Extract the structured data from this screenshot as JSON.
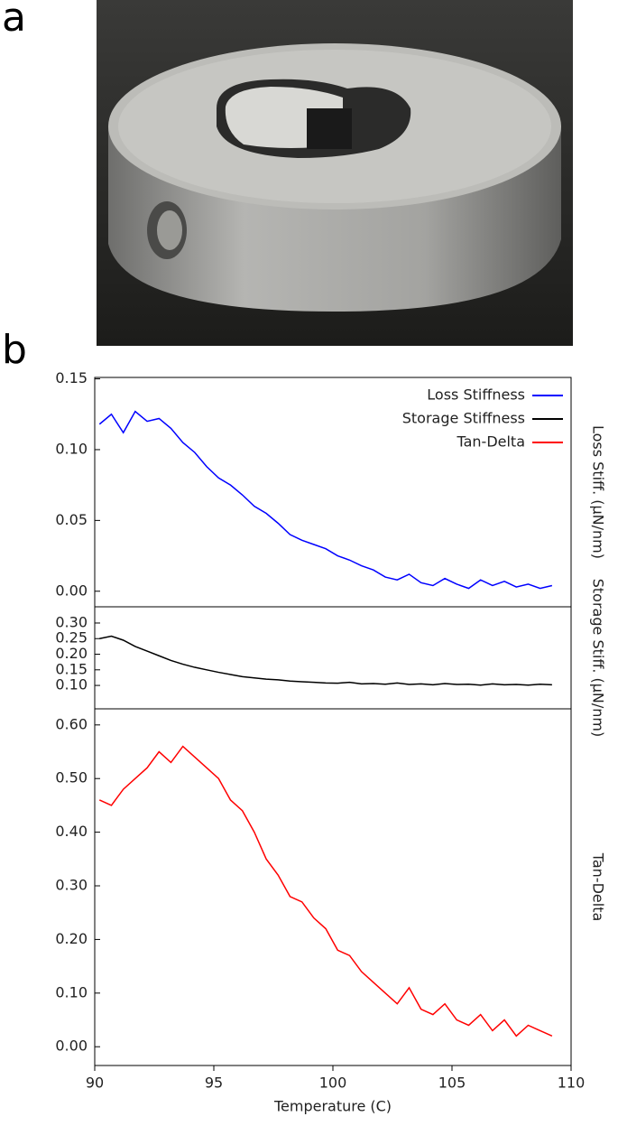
{
  "panel_labels": [
    "a",
    "b"
  ],
  "chart_data": [
    {
      "type": "line",
      "ylabel": "Loss Stiff. (µN/nm)",
      "x": [
        90.2,
        90.7,
        91.2,
        91.7,
        92.2,
        92.7,
        93.2,
        93.7,
        94.2,
        94.7,
        95.2,
        95.7,
        96.2,
        96.7,
        97.2,
        97.7,
        98.2,
        98.7,
        99.2,
        99.7,
        100.2,
        100.7,
        101.2,
        101.7,
        102.2,
        102.7,
        103.2,
        103.7,
        104.2,
        104.7,
        105.2,
        105.7,
        106.2,
        106.7,
        107.2,
        107.7,
        108.2,
        108.7,
        109.2
      ],
      "series": [
        {
          "name": "Loss Stiffness",
          "color": "#0000ff",
          "values": [
            0.118,
            0.125,
            0.112,
            0.127,
            0.12,
            0.122,
            0.115,
            0.105,
            0.098,
            0.088,
            0.08,
            0.075,
            0.068,
            0.06,
            0.055,
            0.048,
            0.04,
            0.036,
            0.033,
            0.03,
            0.025,
            0.022,
            0.018,
            0.015,
            0.01,
            0.008,
            0.012,
            0.006,
            0.004,
            0.009,
            0.005,
            0.002,
            0.008,
            0.004,
            0.007,
            0.003,
            0.005,
            0.002,
            0.004
          ]
        }
      ],
      "xlim": [
        90,
        110
      ],
      "ylim": [
        -0.011,
        0.151
      ],
      "yticks": [
        {
          "value": 0,
          "label": "0.00"
        },
        {
          "value": 0.05,
          "label": "0.05"
        },
        {
          "value": 0.1,
          "label": "0.10"
        },
        {
          "value": 0.15,
          "label": "0.15"
        }
      ]
    },
    {
      "type": "line",
      "ylabel": "Storage Stiff. (µN/nm)",
      "x": [
        90.2,
        90.7,
        91.2,
        91.7,
        92.2,
        92.7,
        93.2,
        93.7,
        94.2,
        94.7,
        95.2,
        95.7,
        96.2,
        96.7,
        97.2,
        97.7,
        98.2,
        98.7,
        99.2,
        99.7,
        100.2,
        100.7,
        101.2,
        101.7,
        102.2,
        102.7,
        103.2,
        103.7,
        104.2,
        104.7,
        105.2,
        105.7,
        106.2,
        106.7,
        107.2,
        107.7,
        108.2,
        108.7,
        109.2
      ],
      "series": [
        {
          "name": "Storage Stiffness",
          "color": "#000000",
          "values": [
            0.25,
            0.258,
            0.245,
            0.225,
            0.21,
            0.195,
            0.18,
            0.168,
            0.158,
            0.15,
            0.142,
            0.135,
            0.128,
            0.124,
            0.12,
            0.118,
            0.114,
            0.112,
            0.11,
            0.108,
            0.107,
            0.11,
            0.105,
            0.106,
            0.104,
            0.108,
            0.103,
            0.105,
            0.102,
            0.106,
            0.103,
            0.104,
            0.101,
            0.105,
            0.102,
            0.103,
            0.101,
            0.104,
            0.102
          ]
        }
      ],
      "xlim": [
        90,
        110
      ],
      "ylim": [
        0.025,
        0.352
      ],
      "yticks": [
        {
          "value": 0.1,
          "label": "0.10"
        },
        {
          "value": 0.15,
          "label": "0.15"
        },
        {
          "value": 0.2,
          "label": "0.20"
        },
        {
          "value": 0.25,
          "label": "0.25"
        },
        {
          "value": 0.3,
          "label": "0.30"
        }
      ]
    },
    {
      "type": "line",
      "ylabel": "Tan-Delta",
      "xlabel": "Temperature (C)",
      "x": [
        90.2,
        90.7,
        91.2,
        91.7,
        92.2,
        92.7,
        93.2,
        93.7,
        94.2,
        94.7,
        95.2,
        95.7,
        96.2,
        96.7,
        97.2,
        97.7,
        98.2,
        98.7,
        99.2,
        99.7,
        100.2,
        100.7,
        101.2,
        101.7,
        102.2,
        102.7,
        103.2,
        103.7,
        104.2,
        104.7,
        105.2,
        105.7,
        106.2,
        106.7,
        107.2,
        107.7,
        108.2,
        108.7,
        109.2
      ],
      "series": [
        {
          "name": "Tan-Delta",
          "color": "#ff0000",
          "values": [
            0.46,
            0.45,
            0.48,
            0.5,
            0.52,
            0.55,
            0.53,
            0.56,
            0.54,
            0.52,
            0.5,
            0.46,
            0.44,
            0.4,
            0.35,
            0.32,
            0.28,
            0.27,
            0.24,
            0.22,
            0.18,
            0.17,
            0.14,
            0.12,
            0.1,
            0.08,
            0.11,
            0.07,
            0.06,
            0.08,
            0.05,
            0.04,
            0.06,
            0.03,
            0.05,
            0.02,
            0.04,
            0.03,
            0.02
          ]
        }
      ],
      "xlim": [
        90,
        110
      ],
      "xticks": [
        90,
        95,
        100,
        105,
        110
      ],
      "ylim": [
        -0.035,
        0.63
      ],
      "yticks": [
        {
          "value": 0,
          "label": "0.00"
        },
        {
          "value": 0.1,
          "label": "0.10"
        },
        {
          "value": 0.2,
          "label": "0.20"
        },
        {
          "value": 0.3,
          "label": "0.30"
        },
        {
          "value": 0.4,
          "label": "0.40"
        },
        {
          "value": 0.5,
          "label": "0.50"
        },
        {
          "value": 0.6,
          "label": "0.60"
        }
      ]
    }
  ]
}
